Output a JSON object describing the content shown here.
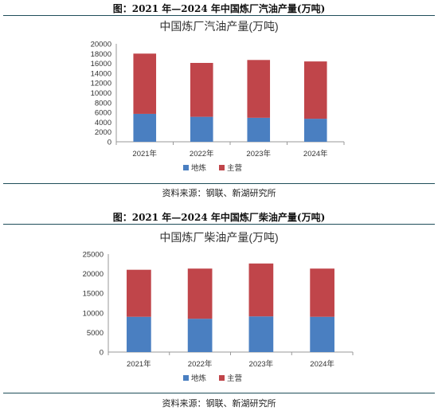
{
  "panels": [
    {
      "caption": "图：2021 年—2024 年中国炼厂汽油产量(万吨)",
      "source": "资料来源：钢联、新湖研究所"
    },
    {
      "caption": "图：2021 年—2024 年中国炼厂柴油产量(万吨)",
      "source": "资料来源：钢联、新湖研究所"
    }
  ],
  "colors": {
    "dilian": "#4a7fc1",
    "zhuying": "#c0454a",
    "axis": "#999999"
  },
  "chart_data": [
    {
      "type": "bar",
      "stacked": true,
      "title": "中国炼厂汽油产量(万吨)",
      "categories": [
        "2021年",
        "2022年",
        "2023年",
        "2024年"
      ],
      "series": [
        {
          "name": "地炼",
          "values": [
            5700,
            5100,
            4900,
            4700
          ]
        },
        {
          "name": "主营",
          "values": [
            12300,
            11000,
            11800,
            11700
          ]
        }
      ],
      "yticks": [
        "0",
        "2000",
        "4000",
        "6000",
        "8000",
        "10000",
        "12000",
        "14000",
        "16000",
        "18000",
        "20000"
      ],
      "ylim": [
        0,
        20000
      ],
      "legend": "bottom"
    },
    {
      "type": "bar",
      "stacked": true,
      "title": "中国炼厂柴油产量(万吨)",
      "categories": [
        "2021年",
        "2022年",
        "2023年",
        "2024年"
      ],
      "series": [
        {
          "name": "地炼",
          "values": [
            9000,
            8500,
            9100,
            9000
          ]
        },
        {
          "name": "主营",
          "values": [
            12000,
            12800,
            13500,
            12300
          ]
        }
      ],
      "yticks": [
        "0",
        "5000",
        "10000",
        "15000",
        "20000",
        "25000"
      ],
      "ylim": [
        0,
        25000
      ],
      "legend": "bottom"
    }
  ]
}
